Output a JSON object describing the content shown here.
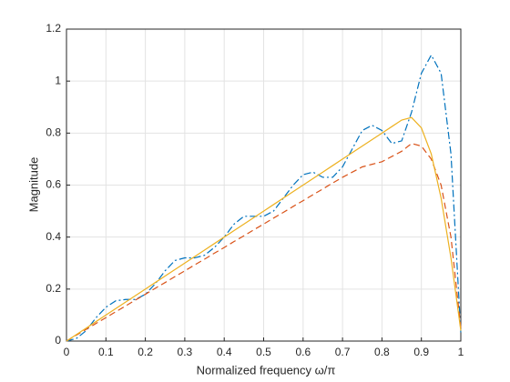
{
  "chart_data": {
    "type": "line",
    "xlabel": "Normalized frequency ω/π",
    "ylabel": "Magnitude",
    "x": [
      0,
      0.025,
      0.05,
      0.075,
      0.1,
      0.125,
      0.15,
      0.175,
      0.2,
      0.225,
      0.25,
      0.275,
      0.3,
      0.325,
      0.35,
      0.375,
      0.4,
      0.425,
      0.45,
      0.475,
      0.5,
      0.525,
      0.55,
      0.575,
      0.6,
      0.625,
      0.65,
      0.675,
      0.7,
      0.725,
      0.75,
      0.775,
      0.8,
      0.825,
      0.85,
      0.875,
      0.9,
      0.925,
      0.95,
      0.975,
      1
    ],
    "series": [
      {
        "color": "#0072bd",
        "style": "dash-dot",
        "values": [
          0,
          0.01,
          0.04,
          0.09,
          0.13,
          0.155,
          0.16,
          0.16,
          0.18,
          0.22,
          0.27,
          0.31,
          0.32,
          0.32,
          0.33,
          0.36,
          0.4,
          0.45,
          0.48,
          0.48,
          0.48,
          0.5,
          0.55,
          0.6,
          0.64,
          0.65,
          0.63,
          0.63,
          0.67,
          0.74,
          0.81,
          0.83,
          0.81,
          0.76,
          0.77,
          0.88,
          1.03,
          1.1,
          1.03,
          0.72,
          0.03
        ]
      },
      {
        "color": "#d95319",
        "style": "dashed",
        "values": [
          0,
          0.023,
          0.045,
          0.068,
          0.09,
          0.113,
          0.135,
          0.158,
          0.18,
          0.203,
          0.225,
          0.248,
          0.27,
          0.293,
          0.315,
          0.338,
          0.36,
          0.383,
          0.405,
          0.428,
          0.45,
          0.473,
          0.495,
          0.518,
          0.54,
          0.563,
          0.585,
          0.608,
          0.63,
          0.65,
          0.67,
          0.68,
          0.69,
          0.71,
          0.73,
          0.76,
          0.75,
          0.7,
          0.6,
          0.4,
          0.05
        ]
      },
      {
        "color": "#edb120",
        "style": "solid",
        "values": [
          0,
          0.025,
          0.05,
          0.075,
          0.1,
          0.125,
          0.15,
          0.175,
          0.2,
          0.225,
          0.25,
          0.275,
          0.3,
          0.325,
          0.35,
          0.375,
          0.4,
          0.425,
          0.45,
          0.475,
          0.5,
          0.525,
          0.55,
          0.575,
          0.6,
          0.625,
          0.65,
          0.675,
          0.7,
          0.725,
          0.75,
          0.775,
          0.8,
          0.825,
          0.85,
          0.86,
          0.82,
          0.72,
          0.55,
          0.32,
          0.04
        ]
      }
    ],
    "xlim": [
      0,
      1
    ],
    "xticks": [
      0,
      0.1,
      0.2,
      0.3,
      0.4,
      0.5,
      0.6,
      0.7,
      0.8,
      0.9,
      1
    ],
    "ylim": [
      0,
      1.2
    ],
    "yticks": [
      0,
      0.2,
      0.4,
      0.6,
      0.8,
      1,
      1.2
    ],
    "grid": true
  }
}
